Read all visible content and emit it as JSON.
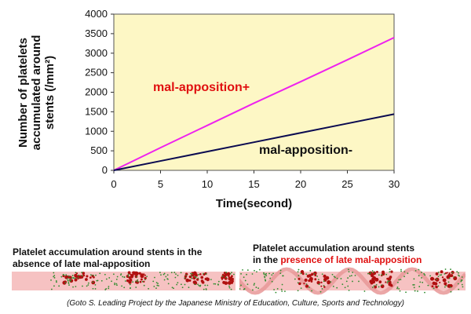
{
  "chart_data": {
    "type": "line",
    "title": "",
    "xlabel": "Time(second)",
    "ylabel": [
      "Number of platelets",
      "accumulated around",
      "stents (/mm²)"
    ],
    "xlim": [
      0,
      30
    ],
    "ylim": [
      0,
      4000
    ],
    "x_ticks": [
      0,
      5,
      10,
      15,
      20,
      25,
      30
    ],
    "y_ticks": [
      0,
      500,
      1000,
      1500,
      2000,
      2500,
      3000,
      3500,
      4000
    ],
    "grid": false,
    "background": "#fdf7c5",
    "series": [
      {
        "name": "mal-apposition+",
        "color": "#ee22ee",
        "label_color": "#e01010",
        "x": [
          0,
          5,
          10,
          15,
          20,
          25,
          30
        ],
        "values": [
          0,
          580,
          1150,
          1720,
          2270,
          2830,
          3400
        ]
      },
      {
        "name": "mal-apposition-",
        "color": "#0a0a50",
        "label_color": "#111111",
        "x": [
          0,
          5,
          10,
          15,
          20,
          25,
          30
        ],
        "values": [
          0,
          240,
          480,
          720,
          960,
          1200,
          1440
        ]
      }
    ]
  },
  "captions": {
    "left": {
      "line1": "Platelet accumulation around stents in the",
      "line2": "absence of late mal-apposition"
    },
    "right": {
      "line1": "Platelet accumulation around stents",
      "line2_prefix": "in the ",
      "line2_highlight": "presence of late mal-apposition"
    }
  },
  "credit": "(Goto S. Leading Project by the Japanese Ministry of Education, Culture, Sports and Technology)",
  "colors": {
    "strip_pink": "#f6c2c2",
    "strip_deep": "#e89898",
    "clot_red": "#b01010",
    "dot_green": "#2e8b2e"
  }
}
